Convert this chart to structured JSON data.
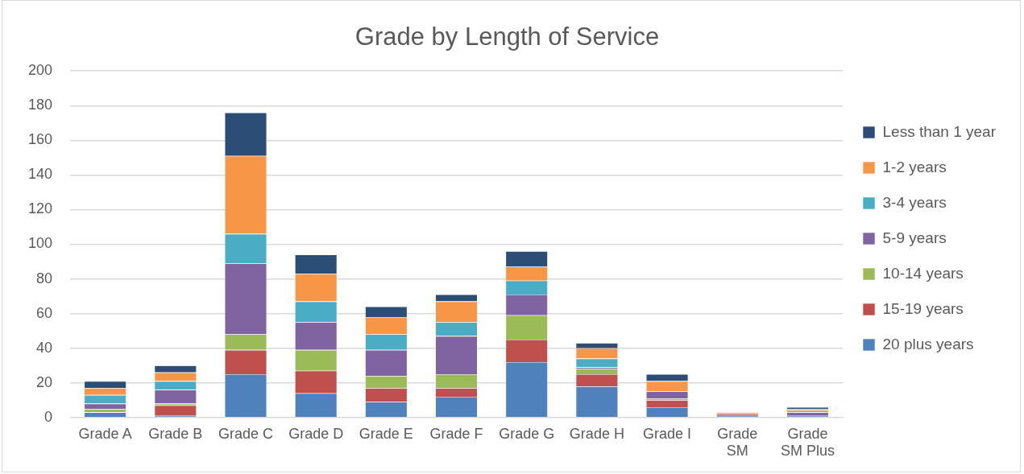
{
  "chart_data": {
    "type": "bar",
    "title": "Grade by Length of Service",
    "stacked": true,
    "legend": "right",
    "grid": "y",
    "categories": [
      "Grade A",
      "Grade B",
      "Grade C",
      "Grade D",
      "Grade E",
      "Grade F",
      "Grade G",
      "Grade H",
      "Grade I",
      "Grade SM",
      "Grade SM Plus"
    ],
    "ylim": [
      0,
      200
    ],
    "yticks": [
      0,
      20,
      40,
      60,
      80,
      100,
      120,
      140,
      160,
      180,
      200
    ],
    "series": [
      {
        "name": "20 plus years",
        "color": "#4f81bd",
        "values": [
          3,
          1,
          25,
          14,
          9,
          12,
          32,
          18,
          6,
          1,
          1
        ]
      },
      {
        "name": "15-19 years",
        "color": "#c0504d",
        "values": [
          0,
          6,
          14,
          13,
          8,
          5,
          13,
          7,
          4,
          1,
          0
        ]
      },
      {
        "name": "10-14 years",
        "color": "#9bbb59",
        "values": [
          2,
          1,
          9,
          12,
          7,
          8,
          14,
          3,
          1,
          0,
          0
        ]
      },
      {
        "name": "5-9 years",
        "color": "#8064a2",
        "values": [
          3,
          8,
          41,
          16,
          15,
          22,
          12,
          1,
          4,
          0,
          2
        ]
      },
      {
        "name": "3-4 years",
        "color": "#4bacc6",
        "values": [
          5,
          5,
          17,
          12,
          9,
          8,
          8,
          5,
          0,
          0,
          1
        ]
      },
      {
        "name": "1-2 years",
        "color": "#f79646",
        "values": [
          4,
          5,
          45,
          16,
          10,
          12,
          8,
          6,
          6,
          1,
          1
        ]
      },
      {
        "name": "Less than 1 year",
        "color": "#2c4d75",
        "values": [
          4,
          4,
          25,
          11,
          6,
          4,
          9,
          3,
          4,
          0,
          1
        ]
      }
    ]
  }
}
